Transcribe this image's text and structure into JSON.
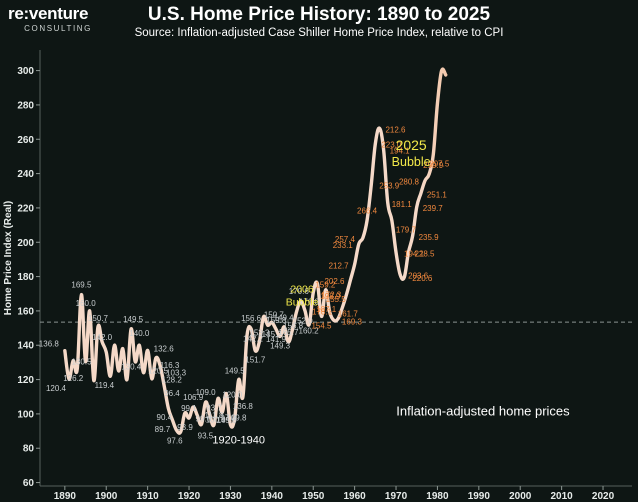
{
  "header": {
    "logo_brand": "re:venture",
    "logo_sub": "CONSULTING",
    "title": "U.S. Home Price History: 1890 to 2025",
    "subtitle": "Source: Inflation-adjusted Case Shiller Home Price Index, relative to CPI"
  },
  "colors": {
    "background": "#0e1614",
    "line_early": "#f5d9c8",
    "line_late": "#f07a32",
    "label_early": "#c9ced0",
    "label_late": "#f0883e",
    "annotation_yellow": "#f2e94a",
    "reference_line": "#8a9491"
  },
  "chart_data": {
    "type": "line",
    "title": "U.S. Home Price History: 1890 to 2025",
    "subtitle": "Source: Inflation-adjusted Case Shiller Home Price Index, relative to CPI",
    "xlabel": "",
    "ylabel": "Home Price Index (Real)",
    "xlim": [
      1884,
      2027
    ],
    "ylim": [
      58,
      312
    ],
    "x_ticks": [
      1890,
      1900,
      1910,
      1920,
      1930,
      1940,
      1950,
      1960,
      1970,
      1980,
      1990,
      2000,
      2010,
      2020
    ],
    "y_ticks": [
      60,
      80,
      100,
      120,
      140,
      160,
      180,
      200,
      220,
      240,
      260,
      280,
      300
    ],
    "grid": false,
    "reference_line": {
      "y": 153.5,
      "style": "dashed"
    },
    "series": [
      {
        "values": [
          [
            1890,
            136.8
          ],
          [
            1891,
            120.4
          ],
          [
            1892,
            131.0
          ],
          [
            1893,
            126.2
          ],
          [
            1894,
            169.5
          ],
          [
            1895,
            130.5
          ],
          [
            1896,
            160.0
          ],
          [
            1897,
            119.4
          ],
          [
            1898,
            150.7
          ],
          [
            1899,
            142.0
          ],
          [
            1900,
            136.0
          ],
          [
            1901,
            122.0
          ],
          [
            1902,
            140.0
          ],
          [
            1903,
            125.0
          ],
          [
            1904,
            138.0
          ],
          [
            1905,
            120.0
          ],
          [
            1906,
            149.5
          ],
          [
            1907,
            130.4
          ],
          [
            1908,
            140.0
          ],
          [
            1909,
            124.0
          ],
          [
            1910,
            137.0
          ],
          [
            1911,
            120.5
          ],
          [
            1912,
            132.6
          ],
          [
            1913,
            128.2
          ],
          [
            1914,
            116.3
          ],
          [
            1915,
            103.3
          ],
          [
            1916,
            96.4
          ],
          [
            1917,
            90.4
          ],
          [
            1918,
            89.7
          ],
          [
            1919,
            100.5
          ],
          [
            1920,
            97.6
          ],
          [
            1921,
            104.0
          ],
          [
            1922,
            99.1
          ],
          [
            1923,
            93.9
          ],
          [
            1924,
            106.9
          ],
          [
            1925,
            99.6
          ],
          [
            1926,
            93.5
          ],
          [
            1927,
            109.0
          ],
          [
            1928,
            100.9
          ],
          [
            1929,
            111.8
          ],
          [
            1930,
            93.7
          ],
          [
            1931,
            97.0
          ],
          [
            1932,
            120.0
          ],
          [
            1933,
            109.8
          ],
          [
            1934,
            145.6
          ],
          [
            1935,
            149.5
          ],
          [
            1936,
            136.8
          ],
          [
            1937,
            142.2
          ],
          [
            1938,
            156.6
          ],
          [
            1939,
            151.7
          ],
          [
            1940,
            153.3
          ],
          [
            1941,
            149.4
          ],
          [
            1942,
            145.2
          ],
          [
            1943,
            150.7
          ],
          [
            1944,
            141.9
          ],
          [
            1945,
            149.3
          ],
          [
            1946,
            159.8
          ],
          [
            1947,
            165.7
          ],
          [
            1948,
            160.2
          ],
          [
            1949,
            152.0
          ],
          [
            1950,
            170.6
          ],
          [
            1951,
            176.0
          ],
          [
            1952,
            156.8
          ],
          [
            1953,
            172.3
          ],
          [
            1954,
            159.2
          ],
          [
            1955,
            154.5
          ],
          [
            1956,
            155.5
          ],
          [
            1957,
            161.7
          ],
          [
            1958,
            169.3
          ],
          [
            1959,
            178.1
          ],
          [
            1960,
            187.1
          ],
          [
            1961,
            198.9
          ],
          [
            1962,
            202.6
          ],
          [
            1963,
            212.7
          ],
          [
            1964,
            233.1
          ],
          [
            1965,
            257.4
          ],
          [
            1966,
            266.4
          ],
          [
            1967,
            253.9
          ],
          [
            1968,
            223.0
          ],
          [
            1969,
            212.6
          ],
          [
            1970,
            194.1
          ],
          [
            1971,
            181.1
          ],
          [
            1972,
            179.7
          ],
          [
            1973,
            194.1
          ],
          [
            1974,
            203.6
          ],
          [
            1975,
            220.6
          ],
          [
            1976,
            228.5
          ],
          [
            1977,
            235.9
          ],
          [
            1978,
            239.7
          ],
          [
            1979,
            251.1
          ],
          [
            1980,
            280.8
          ],
          [
            1981,
            299.9
          ],
          [
            1982,
            297.5
          ]
        ]
      }
    ],
    "data_labels": [
      "136.8",
      "120.4",
      "126.2",
      "169.5",
      "160.0",
      "130.5",
      "150.7",
      "142.0",
      "119.4",
      "149.5",
      "130.4",
      "140.0",
      "132.6",
      "128.2",
      "120.5",
      "116.3",
      "103.3",
      "96.4",
      "90.4",
      "89.7",
      "97.6",
      "99.1",
      "93.9",
      "106.9",
      "99.6",
      "93.5",
      "109.0",
      "100.9",
      "111.8",
      "93.7",
      "97.0",
      "120.0",
      "109.8",
      "145.6",
      "149.5",
      "136.8",
      "142.2",
      "156.6",
      "151.7",
      "153.3",
      "149.4",
      "145.2",
      "150.7",
      "141.9",
      "149.3",
      "159.8",
      "165.7",
      "160.2",
      "152.0",
      "170.6",
      "176.0",
      "156.8",
      "172.3",
      "159.2",
      "154.5",
      "155.5",
      "161.7",
      "169.3",
      "178.1",
      "187.1",
      "198.9",
      "202.6",
      "212.7",
      "233.1",
      "257.4",
      "266.4",
      "253.9",
      "223.0",
      "212.6",
      "194.1",
      "181.1",
      "179.7",
      "194.1",
      "203.6",
      "220.6",
      "228.5",
      "235.9",
      "239.7",
      "251.1",
      "280.8",
      "299.9",
      "297.5"
    ],
    "annotations": [
      {
        "text": "2006",
        "target": "2006"
      },
      {
        "text": "Bubble",
        "target": "2006"
      },
      {
        "text": "2025",
        "target": "2025"
      },
      {
        "text": "Bubble",
        "target": "2025"
      },
      {
        "text": "1920-1940",
        "target": "trough"
      },
      {
        "text": "Inflation-adjusted home prices",
        "target": "series"
      }
    ]
  }
}
